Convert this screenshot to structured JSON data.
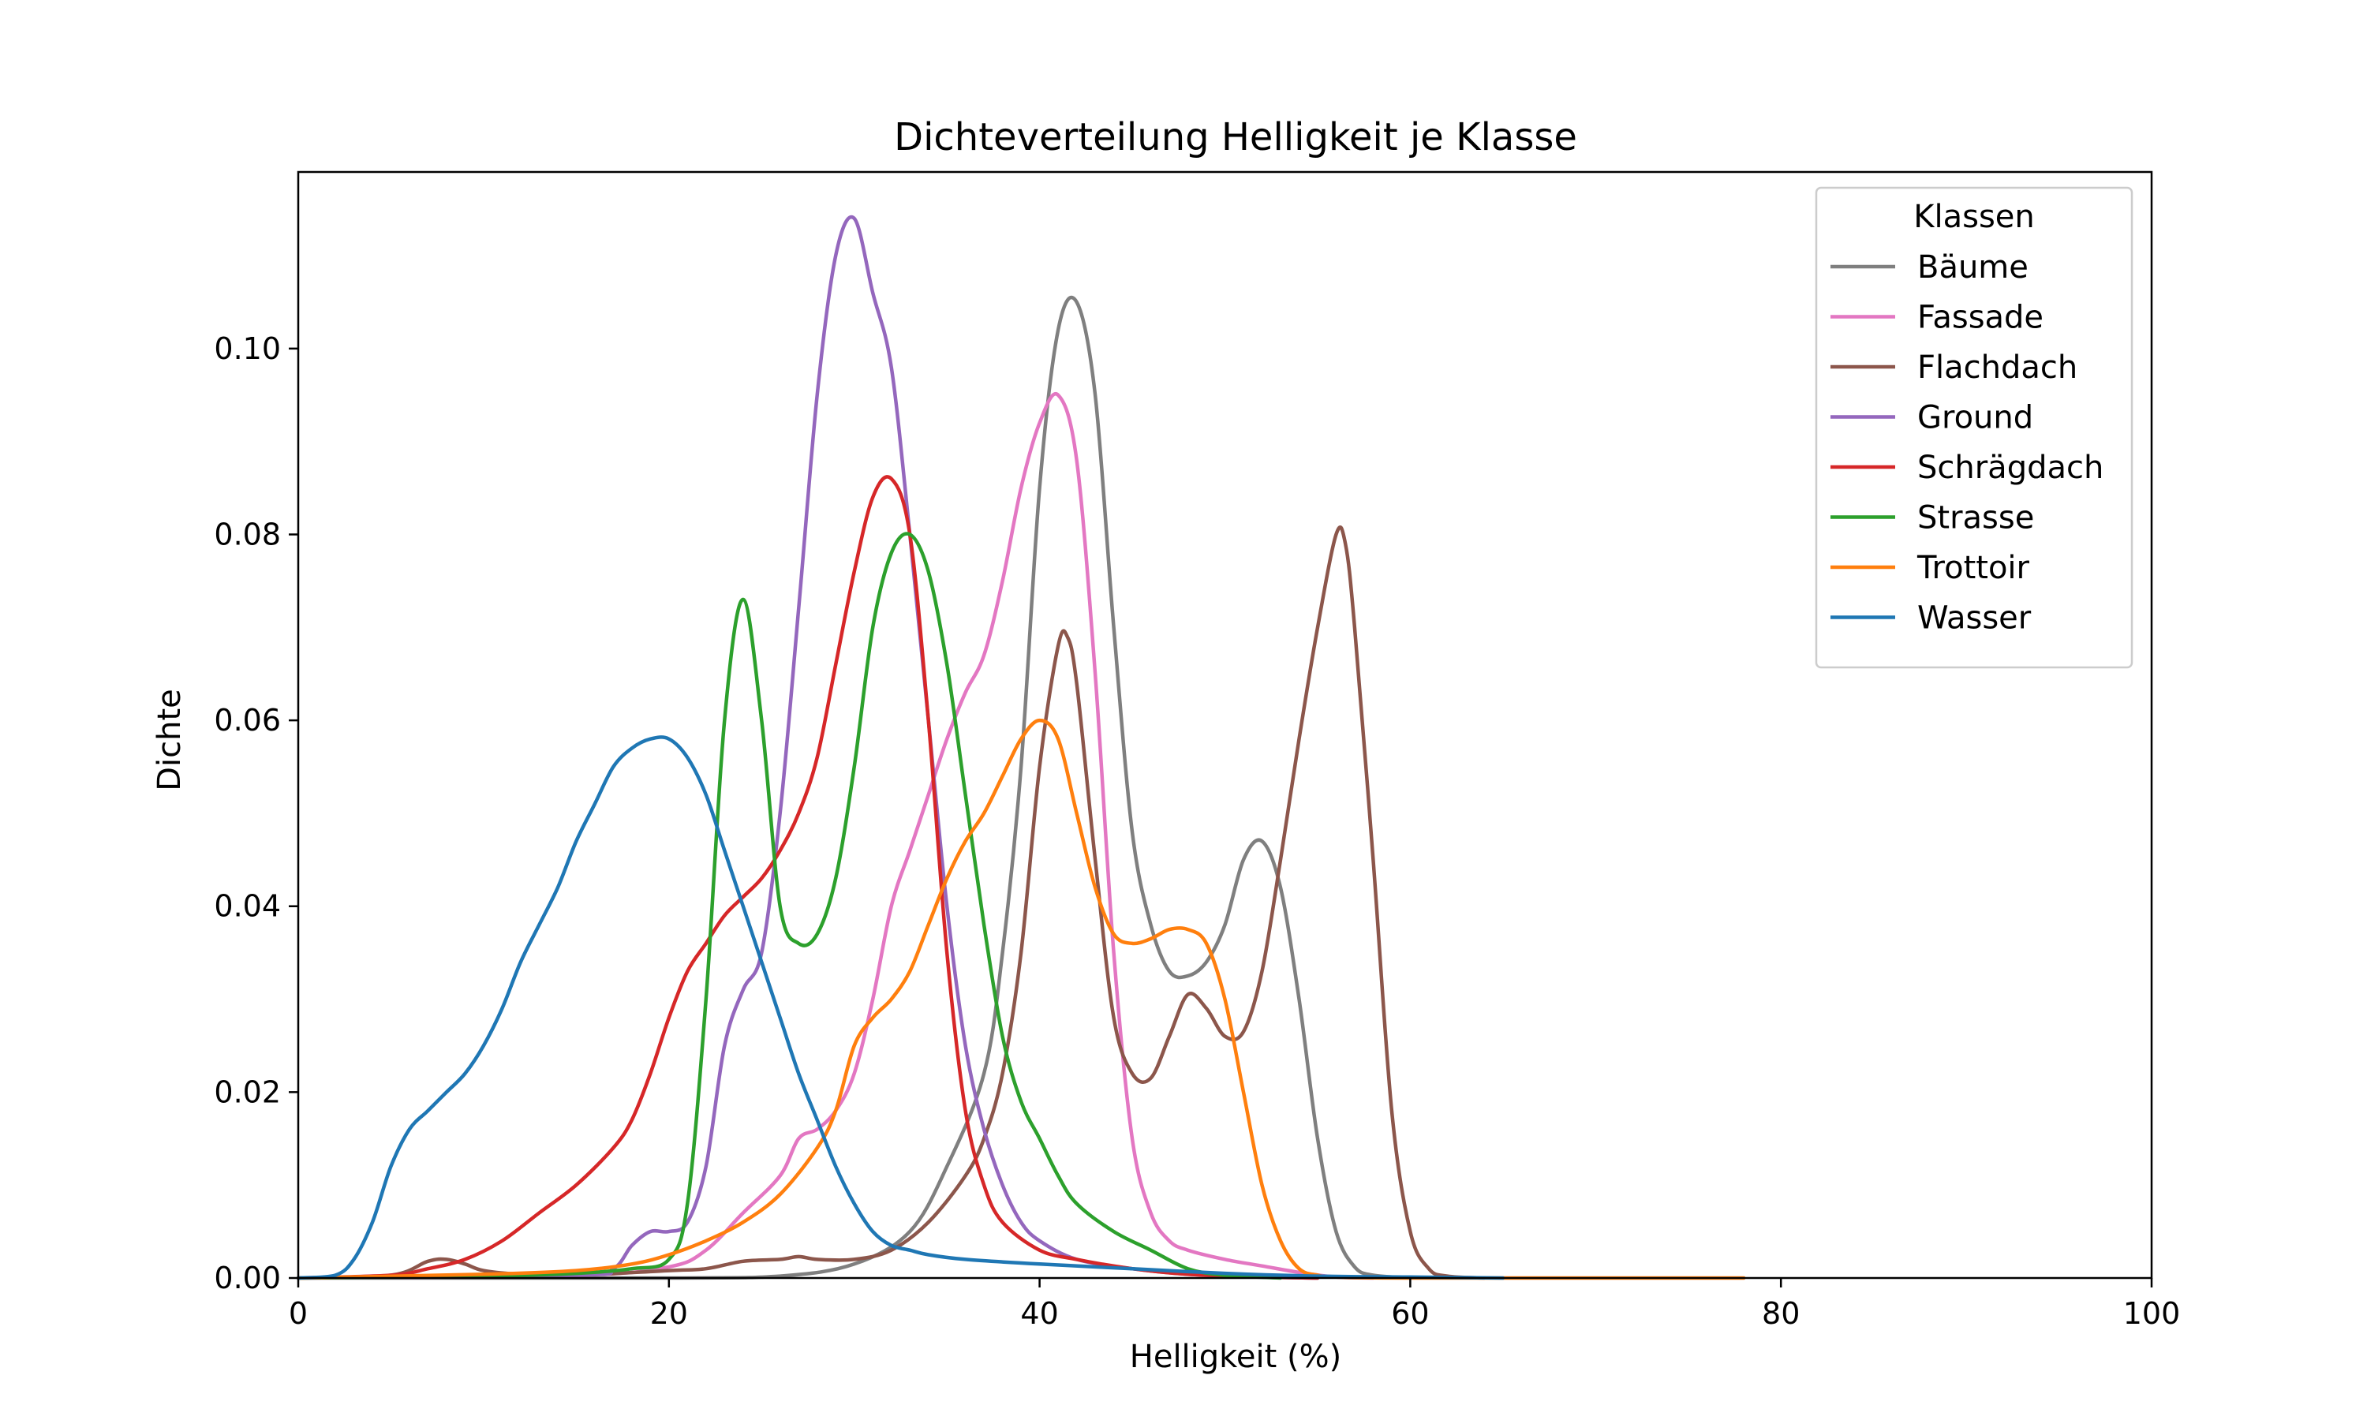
{
  "chart_data": {
    "type": "line",
    "title": "Dichteverteilung Helligkeit je Klasse",
    "xlabel": "Helligkeit (%)",
    "ylabel": "Dichte",
    "xlim": [
      0,
      100
    ],
    "ylim": [
      0,
      0.119
    ],
    "xticks": [
      0,
      20,
      40,
      60,
      80,
      100
    ],
    "xtick_labels": [
      "0",
      "20",
      "40",
      "60",
      "80",
      "100"
    ],
    "yticks": [
      0,
      0.02,
      0.04,
      0.06,
      0.08,
      0.1
    ],
    "ytick_labels": [
      "0.00",
      "0.02",
      "0.04",
      "0.06",
      "0.08",
      "0.10"
    ],
    "grid": false,
    "legend": {
      "title": "Klassen",
      "placement": "top-right"
    },
    "series": [
      {
        "name": "Bäume",
        "color": "#7f7f7f",
        "points": [
          [
            0,
            0
          ],
          [
            20,
            0
          ],
          [
            26,
            0.0002
          ],
          [
            30,
            0.0015
          ],
          [
            33,
            0.005
          ],
          [
            35,
            0.012
          ],
          [
            37,
            0.022
          ],
          [
            38,
            0.035
          ],
          [
            39,
            0.055
          ],
          [
            40,
            0.085
          ],
          [
            41,
            0.102
          ],
          [
            42,
            0.105
          ],
          [
            43,
            0.095
          ],
          [
            44,
            0.07
          ],
          [
            45,
            0.048
          ],
          [
            46,
            0.038
          ],
          [
            47,
            0.033
          ],
          [
            48,
            0.0325
          ],
          [
            49,
            0.034
          ],
          [
            50,
            0.038
          ],
          [
            51,
            0.045
          ],
          [
            52,
            0.047
          ],
          [
            53,
            0.042
          ],
          [
            54,
            0.03
          ],
          [
            55,
            0.015
          ],
          [
            56,
            0.005
          ],
          [
            57,
            0.0012
          ],
          [
            58,
            0.0003
          ],
          [
            60,
            0
          ]
        ]
      },
      {
        "name": "Fassade",
        "color": "#e377c2",
        "points": [
          [
            0,
            0
          ],
          [
            15,
            0.0003
          ],
          [
            20,
            0.0012
          ],
          [
            22,
            0.003
          ],
          [
            24,
            0.007
          ],
          [
            26,
            0.011
          ],
          [
            27,
            0.015
          ],
          [
            28,
            0.016
          ],
          [
            29,
            0.018
          ],
          [
            30,
            0.022
          ],
          [
            31,
            0.03
          ],
          [
            32,
            0.04
          ],
          [
            33,
            0.046
          ],
          [
            34,
            0.052
          ],
          [
            35,
            0.058
          ],
          [
            36,
            0.063
          ],
          [
            37,
            0.067
          ],
          [
            38,
            0.075
          ],
          [
            39,
            0.085
          ],
          [
            40,
            0.092
          ],
          [
            41,
            0.095
          ],
          [
            42,
            0.088
          ],
          [
            43,
            0.065
          ],
          [
            44,
            0.035
          ],
          [
            45,
            0.015
          ],
          [
            46,
            0.007
          ],
          [
            47,
            0.004
          ],
          [
            48,
            0.003
          ],
          [
            50,
            0.002
          ],
          [
            52,
            0.0013
          ],
          [
            54,
            0.0006
          ],
          [
            56,
            0.0001
          ],
          [
            58,
            0
          ]
        ]
      },
      {
        "name": "Flachdach",
        "color": "#8c564b",
        "points": [
          [
            0,
            0
          ],
          [
            5,
            0.0003
          ],
          [
            7,
            0.0018
          ],
          [
            8,
            0.002
          ],
          [
            9,
            0.0015
          ],
          [
            10,
            0.0008
          ],
          [
            12,
            0.0004
          ],
          [
            15,
            0.0003
          ],
          [
            20,
            0.0008
          ],
          [
            22,
            0.001
          ],
          [
            24,
            0.0018
          ],
          [
            26,
            0.002
          ],
          [
            27,
            0.0023
          ],
          [
            28,
            0.002
          ],
          [
            30,
            0.002
          ],
          [
            32,
            0.003
          ],
          [
            34,
            0.006
          ],
          [
            36,
            0.011
          ],
          [
            37,
            0.015
          ],
          [
            38,
            0.022
          ],
          [
            39,
            0.035
          ],
          [
            40,
            0.055
          ],
          [
            41,
            0.068
          ],
          [
            41.5,
            0.069
          ],
          [
            42,
            0.064
          ],
          [
            43,
            0.045
          ],
          [
            44,
            0.028
          ],
          [
            45,
            0.022
          ],
          [
            46,
            0.0215
          ],
          [
            47,
            0.026
          ],
          [
            48,
            0.0305
          ],
          [
            49,
            0.029
          ],
          [
            50,
            0.026
          ],
          [
            51,
            0.0265
          ],
          [
            52,
            0.033
          ],
          [
            53,
            0.045
          ],
          [
            54,
            0.058
          ],
          [
            55,
            0.07
          ],
          [
            56,
            0.08
          ],
          [
            56.5,
            0.079
          ],
          [
            57,
            0.07
          ],
          [
            58,
            0.045
          ],
          [
            59,
            0.018
          ],
          [
            60,
            0.005
          ],
          [
            61,
            0.001
          ],
          [
            62,
            0.0002
          ],
          [
            64,
            0
          ]
        ]
      },
      {
        "name": "Ground",
        "color": "#9467bd",
        "points": [
          [
            0,
            0
          ],
          [
            15,
            0.0003
          ],
          [
            17,
            0.001
          ],
          [
            18,
            0.0035
          ],
          [
            19,
            0.005
          ],
          [
            20,
            0.005
          ],
          [
            21,
            0.006
          ],
          [
            22,
            0.012
          ],
          [
            23,
            0.025
          ],
          [
            24,
            0.031
          ],
          [
            25,
            0.035
          ],
          [
            26,
            0.05
          ],
          [
            27,
            0.072
          ],
          [
            28,
            0.095
          ],
          [
            29,
            0.11
          ],
          [
            30,
            0.114
          ],
          [
            31,
            0.106
          ],
          [
            32,
            0.098
          ],
          [
            33,
            0.08
          ],
          [
            34,
            0.06
          ],
          [
            35,
            0.04
          ],
          [
            36,
            0.025
          ],
          [
            37,
            0.016
          ],
          [
            38,
            0.01
          ],
          [
            39,
            0.006
          ],
          [
            40,
            0.004
          ],
          [
            42,
            0.002
          ],
          [
            45,
            0.001
          ],
          [
            48,
            0.0004
          ],
          [
            52,
            0.0001
          ],
          [
            55,
            0
          ]
        ]
      },
      {
        "name": "Schrägdach",
        "color": "#d62728",
        "points": [
          [
            0,
            0
          ],
          [
            5,
            0.0003
          ],
          [
            7,
            0.001
          ],
          [
            9,
            0.002
          ],
          [
            11,
            0.004
          ],
          [
            13,
            0.007
          ],
          [
            15,
            0.01
          ],
          [
            17,
            0.014
          ],
          [
            18,
            0.017
          ],
          [
            19,
            0.022
          ],
          [
            20,
            0.028
          ],
          [
            21,
            0.033
          ],
          [
            22,
            0.036
          ],
          [
            23,
            0.039
          ],
          [
            24,
            0.041
          ],
          [
            25,
            0.043
          ],
          [
            26,
            0.046
          ],
          [
            27,
            0.05
          ],
          [
            28,
            0.056
          ],
          [
            29,
            0.066
          ],
          [
            30,
            0.076
          ],
          [
            31,
            0.084
          ],
          [
            32,
            0.086
          ],
          [
            33,
            0.08
          ],
          [
            34,
            0.06
          ],
          [
            35,
            0.035
          ],
          [
            36,
            0.018
          ],
          [
            37,
            0.01
          ],
          [
            38,
            0.006
          ],
          [
            40,
            0.003
          ],
          [
            42,
            0.002
          ],
          [
            45,
            0.001
          ],
          [
            48,
            0.0004
          ],
          [
            52,
            0.0001
          ],
          [
            55,
            0
          ]
        ]
      },
      {
        "name": "Strasse",
        "color": "#2ca02c",
        "points": [
          [
            0,
            0
          ],
          [
            10,
            0.0002
          ],
          [
            15,
            0.0005
          ],
          [
            18,
            0.001
          ],
          [
            20,
            0.002
          ],
          [
            21,
            0.008
          ],
          [
            22,
            0.03
          ],
          [
            23,
            0.06
          ],
          [
            24,
            0.073
          ],
          [
            25,
            0.06
          ],
          [
            26,
            0.04
          ],
          [
            27,
            0.036
          ],
          [
            28,
            0.037
          ],
          [
            29,
            0.043
          ],
          [
            30,
            0.055
          ],
          [
            31,
            0.07
          ],
          [
            32,
            0.078
          ],
          [
            33,
            0.08
          ],
          [
            34,
            0.076
          ],
          [
            35,
            0.066
          ],
          [
            36,
            0.052
          ],
          [
            37,
            0.038
          ],
          [
            38,
            0.026
          ],
          [
            39,
            0.019
          ],
          [
            40,
            0.015
          ],
          [
            41,
            0.011
          ],
          [
            42,
            0.008
          ],
          [
            44,
            0.005
          ],
          [
            46,
            0.003
          ],
          [
            48,
            0.001
          ],
          [
            50,
            0.0003
          ],
          [
            53,
            0
          ]
        ]
      },
      {
        "name": "Trottoir",
        "color": "#ff7f0e",
        "points": [
          [
            0,
            0
          ],
          [
            10,
            0.0004
          ],
          [
            15,
            0.0008
          ],
          [
            18,
            0.0015
          ],
          [
            20,
            0.0025
          ],
          [
            22,
            0.004
          ],
          [
            24,
            0.006
          ],
          [
            26,
            0.009
          ],
          [
            28,
            0.014
          ],
          [
            29,
            0.018
          ],
          [
            30,
            0.025
          ],
          [
            31,
            0.028
          ],
          [
            32,
            0.03
          ],
          [
            33,
            0.033
          ],
          [
            34,
            0.038
          ],
          [
            35,
            0.043
          ],
          [
            36,
            0.047
          ],
          [
            37,
            0.05
          ],
          [
            38,
            0.054
          ],
          [
            39,
            0.058
          ],
          [
            40,
            0.06
          ],
          [
            41,
            0.058
          ],
          [
            42,
            0.05
          ],
          [
            43,
            0.042
          ],
          [
            44,
            0.037
          ],
          [
            45,
            0.036
          ],
          [
            46,
            0.0365
          ],
          [
            47,
            0.0375
          ],
          [
            48,
            0.0375
          ],
          [
            49,
            0.036
          ],
          [
            50,
            0.03
          ],
          [
            51,
            0.02
          ],
          [
            52,
            0.01
          ],
          [
            53,
            0.004
          ],
          [
            54,
            0.001
          ],
          [
            55,
            0.0003
          ],
          [
            56,
            0.0001
          ],
          [
            60,
            0
          ],
          [
            78,
            0
          ]
        ]
      },
      {
        "name": "Wasser",
        "color": "#1f77b4",
        "points": [
          [
            0,
            0
          ],
          [
            2,
            0.0003
          ],
          [
            3,
            0.002
          ],
          [
            4,
            0.006
          ],
          [
            5,
            0.012
          ],
          [
            6,
            0.016
          ],
          [
            7,
            0.018
          ],
          [
            8,
            0.02
          ],
          [
            9,
            0.022
          ],
          [
            10,
            0.025
          ],
          [
            11,
            0.029
          ],
          [
            12,
            0.034
          ],
          [
            13,
            0.038
          ],
          [
            14,
            0.042
          ],
          [
            15,
            0.047
          ],
          [
            16,
            0.051
          ],
          [
            17,
            0.055
          ],
          [
            18,
            0.057
          ],
          [
            19,
            0.058
          ],
          [
            20,
            0.058
          ],
          [
            21,
            0.056
          ],
          [
            22,
            0.052
          ],
          [
            23,
            0.046
          ],
          [
            24,
            0.04
          ],
          [
            25,
            0.034
          ],
          [
            26,
            0.028
          ],
          [
            27,
            0.022
          ],
          [
            28,
            0.017
          ],
          [
            29,
            0.012
          ],
          [
            30,
            0.008
          ],
          [
            31,
            0.005
          ],
          [
            32,
            0.0035
          ],
          [
            33,
            0.003
          ],
          [
            34,
            0.0025
          ],
          [
            36,
            0.002
          ],
          [
            40,
            0.0015
          ],
          [
            45,
            0.001
          ],
          [
            50,
            0.0005
          ],
          [
            55,
            0.0002
          ],
          [
            60,
            0.0001
          ],
          [
            65,
            0
          ]
        ]
      }
    ]
  }
}
